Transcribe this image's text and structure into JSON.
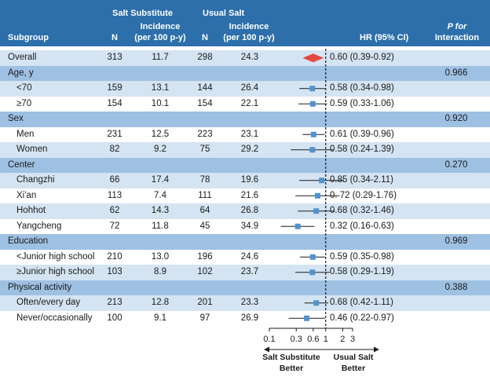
{
  "headers": {
    "subgroup": "Subgroup",
    "salt_substitute": "Salt Substitute",
    "usual_salt": "Usual Salt",
    "n1": "N",
    "incidence1_l1": "Incidence",
    "incidence1_l2": "(per 100 p-y)",
    "n2": "N",
    "incidence2_l1": "Incidence",
    "incidence2_l2": "(per 100 p-y)",
    "hr": "HR (95% CI)",
    "p_l1": "P for",
    "p_l2": "Interaction"
  },
  "rows": [
    {
      "kind": "overall",
      "label": "Overall",
      "n1": "313",
      "inc1": "11.7",
      "n2": "298",
      "inc2": "24.3",
      "hr_text": "0.60 (0.39-0.92)",
      "p": ""
    },
    {
      "kind": "section",
      "label": "Age, y",
      "n1": "",
      "inc1": "",
      "n2": "",
      "inc2": "",
      "hr_text": "",
      "p": "0.966"
    },
    {
      "kind": "item",
      "label": "<70",
      "n1": "159",
      "inc1": "13.1",
      "n2": "144",
      "inc2": "26.4",
      "hr_text": "0.58 (0.34-0.98)",
      "p": ""
    },
    {
      "kind": "item",
      "label": "≥70",
      "n1": "154",
      "inc1": "10.1",
      "n2": "154",
      "inc2": "22.1",
      "hr_text": "0.59 (0.33-1.06)",
      "p": ""
    },
    {
      "kind": "section",
      "label": "Sex",
      "n1": "",
      "inc1": "",
      "n2": "",
      "inc2": "",
      "hr_text": "",
      "p": "0.920"
    },
    {
      "kind": "item",
      "label": "Men",
      "n1": "231",
      "inc1": "12.5",
      "n2": "223",
      "inc2": "23.1",
      "hr_text": "0.61 (0.39-0.96)",
      "p": ""
    },
    {
      "kind": "item",
      "label": "Women",
      "n1": "82",
      "inc1": "9.2",
      "n2": "75",
      "inc2": "29.2",
      "hr_text": "0.58 (0.24-1.39)",
      "p": ""
    },
    {
      "kind": "section",
      "label": "Center",
      "n1": "",
      "inc1": "",
      "n2": "",
      "inc2": "",
      "hr_text": "",
      "p": "0.270"
    },
    {
      "kind": "item",
      "label": "Changzhi",
      "n1": "66",
      "inc1": "17.4",
      "n2": "78",
      "inc2": "19.6",
      "hr_text": "0.85 (0.34-2.11)",
      "p": ""
    },
    {
      "kind": "item",
      "label": "Xi'an",
      "n1": "113",
      "inc1": "7.4",
      "n2": "111",
      "inc2": "21.6",
      "hr_text": "0. 72 (0.29-1.76)",
      "p": ""
    },
    {
      "kind": "item",
      "label": "Hohhot",
      "n1": "62",
      "inc1": "14.3",
      "n2": "64",
      "inc2": "26.8",
      "hr_text": "0.68 (0.32-1.46)",
      "p": ""
    },
    {
      "kind": "item",
      "label": "Yangcheng",
      "n1": "72",
      "inc1": "11.8",
      "n2": "45",
      "inc2": "34.9",
      "hr_text": "0.32 (0.16-0.63)",
      "p": ""
    },
    {
      "kind": "section",
      "label": "Education",
      "n1": "",
      "inc1": "",
      "n2": "",
      "inc2": "",
      "hr_text": "",
      "p": "0.969"
    },
    {
      "kind": "item",
      "label": "<Junior high school",
      "n1": "210",
      "inc1": "13.0",
      "n2": "196",
      "inc2": "24.6",
      "hr_text": "0.59 (0.35-0.98)",
      "p": ""
    },
    {
      "kind": "item",
      "label": "≥Junior high school",
      "n1": "103",
      "inc1": "8.9",
      "n2": "102",
      "inc2": "23.7",
      "hr_text": "0.58 (0.29-1.19)",
      "p": ""
    },
    {
      "kind": "section",
      "label": "Physical activity",
      "n1": "",
      "inc1": "",
      "n2": "",
      "inc2": "",
      "hr_text": "",
      "p": "0.388"
    },
    {
      "kind": "item",
      "label": "Often/every day",
      "n1": "213",
      "inc1": "12.8",
      "n2": "201",
      "inc2": "23.3",
      "hr_text": "0.68 (0.42-1.11)",
      "p": ""
    },
    {
      "kind": "item",
      "label": "Never/occasionally",
      "n1": "100",
      "inc1": "9.1",
      "n2": "97",
      "inc2": "26.9",
      "hr_text": "0.46 (0.22-0.97)",
      "p": ""
    }
  ],
  "axis": {
    "ticks": [
      0.1,
      0.3,
      0.6,
      1,
      2,
      3
    ],
    "tick_labels": [
      "0.1",
      "0.3",
      "0.6",
      "1",
      "2",
      "3"
    ],
    "left_label_l1": "Salt Substitute",
    "left_label_l2": "Better",
    "right_label_l1": "Usual Salt",
    "right_label_l2": "Better"
  },
  "colors": {
    "header_bg": "#2c6fab",
    "section_bg": "#9ec0e2",
    "alt_row_bg": "#d5e4f2",
    "marker": "#4f93d2",
    "overall_diamond": "#e8473f"
  },
  "chart_data": {
    "type": "forest",
    "xscale": "log",
    "xlim": [
      0.1,
      3
    ],
    "reference_line": 1,
    "xlabel": "",
    "series": [
      {
        "label": "Overall",
        "hr": 0.6,
        "lo": 0.39,
        "hi": 0.92,
        "marker": "diamond"
      },
      {
        "label": "<70",
        "hr": 0.58,
        "lo": 0.34,
        "hi": 0.98
      },
      {
        "label": "≥70",
        "hr": 0.59,
        "lo": 0.33,
        "hi": 1.06
      },
      {
        "label": "Men",
        "hr": 0.61,
        "lo": 0.39,
        "hi": 0.96
      },
      {
        "label": "Women",
        "hr": 0.58,
        "lo": 0.24,
        "hi": 1.39
      },
      {
        "label": "Changzhi",
        "hr": 0.85,
        "lo": 0.34,
        "hi": 2.11
      },
      {
        "label": "Xi'an",
        "hr": 0.72,
        "lo": 0.29,
        "hi": 1.76
      },
      {
        "label": "Hohhot",
        "hr": 0.68,
        "lo": 0.32,
        "hi": 1.46
      },
      {
        "label": "Yangcheng",
        "hr": 0.32,
        "lo": 0.16,
        "hi": 0.63
      },
      {
        "label": "<Junior high school",
        "hr": 0.59,
        "lo": 0.35,
        "hi": 0.98
      },
      {
        "label": "≥Junior high school",
        "hr": 0.58,
        "lo": 0.29,
        "hi": 1.19
      },
      {
        "label": "Often/every day",
        "hr": 0.68,
        "lo": 0.42,
        "hi": 1.11
      },
      {
        "label": "Never/occasionally",
        "hr": 0.46,
        "lo": 0.22,
        "hi": 0.97
      }
    ]
  }
}
